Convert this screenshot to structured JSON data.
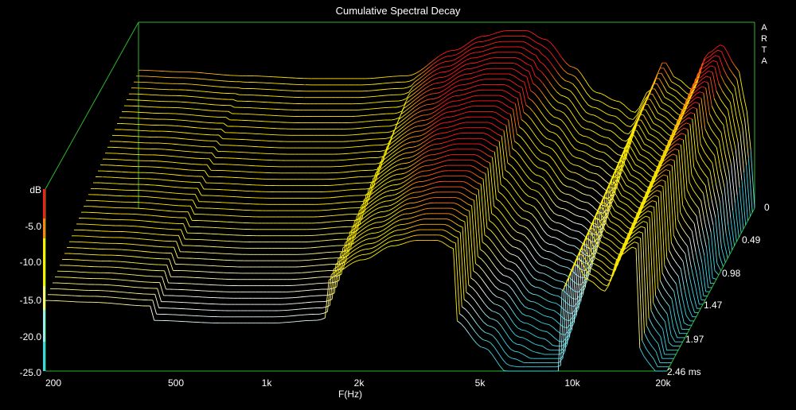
{
  "watermark": [
    "A",
    "R",
    "T",
    "A"
  ],
  "chart_data": {
    "type": "waterfall",
    "title": "Cumulative Spectral Decay",
    "xlabel": "F(Hz)",
    "ylabel": "dB",
    "x_scale": "log",
    "xlim": [
      180,
      20000
    ],
    "ylim": [
      -25,
      0
    ],
    "x_ticks": [
      {
        "value": 200,
        "label": "200"
      },
      {
        "value": 500,
        "label": "500"
      },
      {
        "value": 1000,
        "label": "1k"
      },
      {
        "value": 2000,
        "label": "2k"
      },
      {
        "value": 5000,
        "label": "5k"
      },
      {
        "value": 10000,
        "label": "10k"
      },
      {
        "value": 20000,
        "label": "20k"
      }
    ],
    "y_ticks": [
      {
        "value": -5,
        "label": "-5.0"
      },
      {
        "value": -10,
        "label": "-10.0"
      },
      {
        "value": -15,
        "label": "-15.0"
      },
      {
        "value": -20,
        "label": "-20.0"
      },
      {
        "value": -25,
        "label": "-25.0"
      }
    ],
    "time_ticks": [
      {
        "value": 0,
        "label": "0"
      },
      {
        "value": 0.49,
        "label": "0.49"
      },
      {
        "value": 0.98,
        "label": "0.98"
      },
      {
        "value": 1.47,
        "label": "1.47"
      },
      {
        "value": 1.97,
        "label": "1.97"
      },
      {
        "value": 2.46,
        "label": "2.46 ms"
      }
    ],
    "time_range_ms": [
      0,
      2.46
    ],
    "slice_count": 40,
    "colors": {
      "frame": "#2db82d",
      "hot": "#ff1a1a",
      "warm": "#ffee00",
      "cool": "#ffffff",
      "cold": "#3ad6e6"
    },
    "response_db": [
      {
        "freq": 180,
        "db": -0.5
      },
      {
        "freq": 250,
        "db": -0.8
      },
      {
        "freq": 400,
        "db": -1.5
      },
      {
        "freq": 700,
        "db": -2.0
      },
      {
        "freq": 1000,
        "db": -2.0
      },
      {
        "freq": 1400,
        "db": -1.5
      },
      {
        "freq": 2000,
        "db": 3.0
      },
      {
        "freq": 2500,
        "db": 5.5
      },
      {
        "freq": 3000,
        "db": 6.5
      },
      {
        "freq": 3500,
        "db": 6.5
      },
      {
        "freq": 4000,
        "db": 5.0
      },
      {
        "freq": 5000,
        "db": 0.0
      },
      {
        "freq": 6000,
        "db": -4.5
      },
      {
        "freq": 7000,
        "db": -6.0
      },
      {
        "freq": 8000,
        "db": -8.0
      },
      {
        "freq": 9000,
        "db": -4.0
      },
      {
        "freq": 10000,
        "db": 1.0
      },
      {
        "freq": 11000,
        "db": -2.0
      },
      {
        "freq": 12500,
        "db": -4.0
      },
      {
        "freq": 14000,
        "db": 2.5
      },
      {
        "freq": 15500,
        "db": 4.0
      },
      {
        "freq": 17500,
        "db": 0.0
      },
      {
        "freq": 19000,
        "db": -8.0
      },
      {
        "freq": 20000,
        "db": -25.0
      }
    ]
  }
}
